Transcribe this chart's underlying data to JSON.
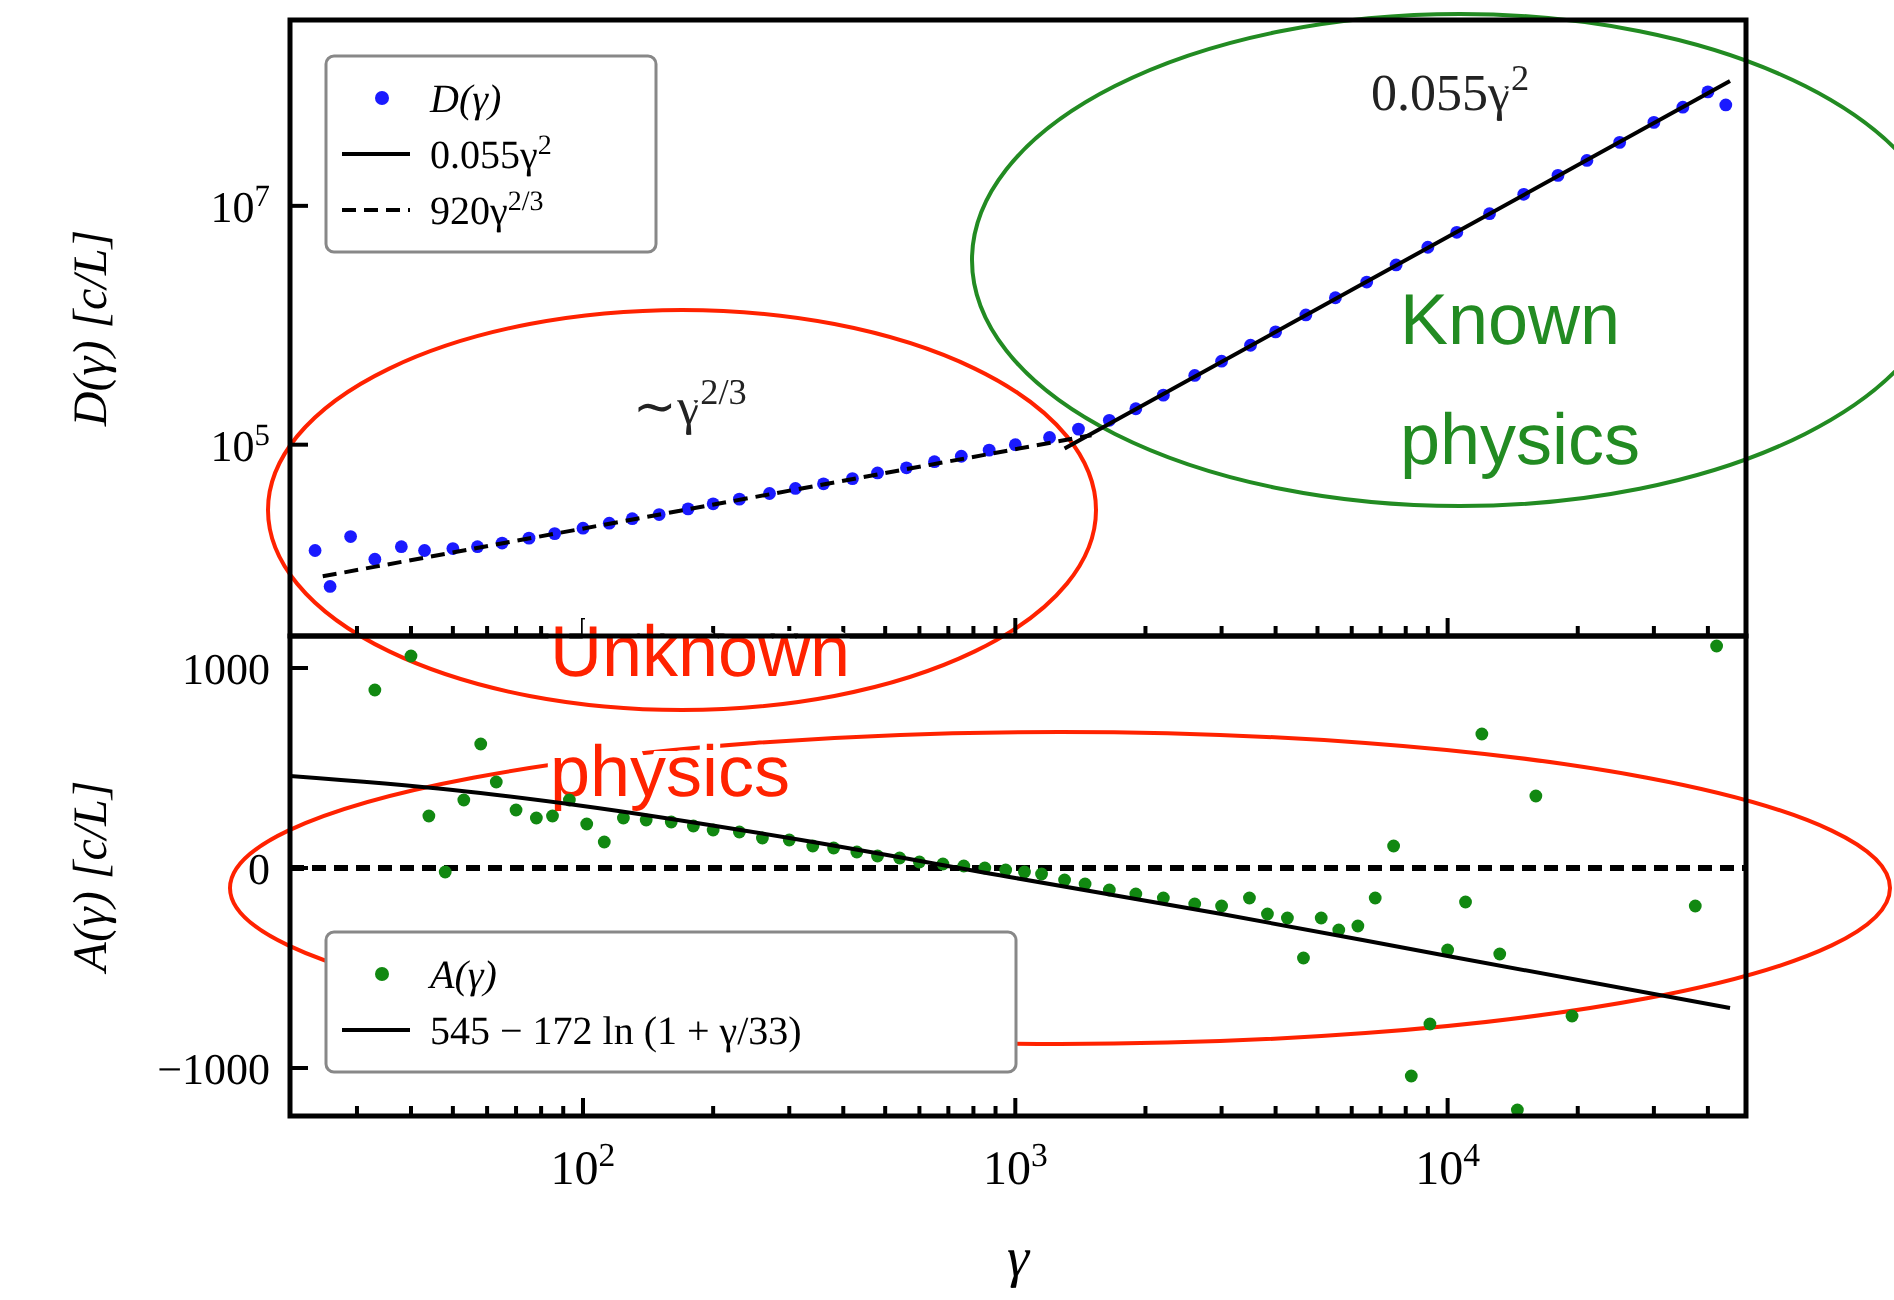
{
  "chart_data": [
    {
      "type": "scatter",
      "ylabel": "D(γ) [c/L]",
      "log": "xy",
      "xlim": [
        21,
        49000
      ],
      "ylim": [
        2500,
        360000000
      ],
      "xticks": [
        {
          "value": 30,
          "label": null
        },
        {
          "value": 40,
          "label": null
        },
        {
          "value": 50,
          "label": null
        },
        {
          "value": 60,
          "label": null
        },
        {
          "value": 70,
          "label": null
        },
        {
          "value": 80,
          "label": null
        },
        {
          "value": 90,
          "label": null
        },
        {
          "value": 100,
          "label": null
        },
        {
          "value": 200,
          "label": null
        },
        {
          "value": 300,
          "label": null
        },
        {
          "value": 400,
          "label": null
        },
        {
          "value": 500,
          "label": null
        },
        {
          "value": 600,
          "label": null
        },
        {
          "value": 700,
          "label": null
        },
        {
          "value": 800,
          "label": null
        },
        {
          "value": 900,
          "label": null
        },
        {
          "value": 1000,
          "label": null
        },
        {
          "value": 2000,
          "label": null
        },
        {
          "value": 3000,
          "label": null
        },
        {
          "value": 4000,
          "label": null
        },
        {
          "value": 5000,
          "label": null
        },
        {
          "value": 6000,
          "label": null
        },
        {
          "value": 7000,
          "label": null
        },
        {
          "value": 8000,
          "label": null
        },
        {
          "value": 9000,
          "label": null
        },
        {
          "value": 10000,
          "label": null
        },
        {
          "value": 20000,
          "label": null
        },
        {
          "value": 30000,
          "label": null
        },
        {
          "value": 40000,
          "label": null
        }
      ],
      "yticks": [
        {
          "value": 100000,
          "label": "10$^{5}$"
        },
        {
          "value": 10000000,
          "label": "10$^{7}$"
        }
      ],
      "tick_labels": "y",
      "legend": "top left",
      "grid": false,
      "series": [
        {
          "name": "D(γ)",
          "marker": "circle",
          "color": "#1a1aff",
          "x": [
            24,
            26,
            29,
            33,
            38,
            43,
            50,
            57,
            65,
            75,
            86,
            100,
            115,
            130,
            150,
            175,
            200,
            230,
            270,
            310,
            360,
            420,
            480,
            560,
            650,
            750,
            870,
            1000,
            1200,
            1400,
            1650,
            1900,
            2200,
            2600,
            3000,
            3500,
            4000,
            4700,
            5500,
            6500,
            7600,
            9000,
            10500,
            12500,
            15000,
            18000,
            21000,
            25000,
            30000,
            35000,
            40000,
            44000
          ],
          "values": [
            13000,
            6500,
            17000,
            11000,
            14000,
            13000,
            13500,
            14000,
            15000,
            16500,
            18000,
            20000,
            22000,
            24000,
            26000,
            29000,
            32000,
            35000,
            39000,
            43000,
            47000,
            52000,
            58000,
            64000,
            72000,
            80000,
            90000,
            100000,
            115000,
            135000,
            160000,
            200000,
            260000,
            380000,
            500000,
            680000,
            880000,
            1220000,
            1700000,
            2300000,
            3200000,
            4500000,
            6000000,
            8600000,
            12500000,
            18000000,
            24000000,
            34000000,
            50000000,
            67000000,
            90000000,
            70000000
          ]
        },
        {
          "name": "0.055γ$^{2}$",
          "type": "line",
          "line_style": "solid",
          "color": "#000000",
          "x": [
            1300,
            45000
          ],
          "values": [
            93000,
            111000000
          ]
        },
        {
          "name": "920γ$^{2/3}$",
          "type": "line",
          "line_style": "dashed",
          "color": "#000000",
          "x": [
            25,
            1500
          ],
          "values": [
            7900,
            120000
          ]
        }
      ],
      "annotations": [
        "∼γ$^{2/3}$",
        "0.055γ$^{2}$",
        "Unknown physics",
        "Known physics"
      ]
    },
    {
      "type": "scatter",
      "ylabel": "A(γ) [c/L]",
      "xlabel": "γ",
      "log": "x",
      "xlim": [
        21,
        49000
      ],
      "ylim": [
        -1240,
        1160
      ],
      "xticks": [
        {
          "value": 30,
          "label": null
        },
        {
          "value": 40,
          "label": null
        },
        {
          "value": 50,
          "label": null
        },
        {
          "value": 60,
          "label": null
        },
        {
          "value": 70,
          "label": null
        },
        {
          "value": 80,
          "label": null
        },
        {
          "value": 90,
          "label": null
        },
        {
          "value": 100,
          "label": "10$^{2}$"
        },
        {
          "value": 200,
          "label": null
        },
        {
          "value": 300,
          "label": null
        },
        {
          "value": 400,
          "label": null
        },
        {
          "value": 500,
          "label": null
        },
        {
          "value": 600,
          "label": null
        },
        {
          "value": 700,
          "label": null
        },
        {
          "value": 800,
          "label": null
        },
        {
          "value": 900,
          "label": null
        },
        {
          "value": 1000,
          "label": "10$^{3}$"
        },
        {
          "value": 2000,
          "label": null
        },
        {
          "value": 3000,
          "label": null
        },
        {
          "value": 4000,
          "label": null
        },
        {
          "value": 5000,
          "label": null
        },
        {
          "value": 6000,
          "label": null
        },
        {
          "value": 7000,
          "label": null
        },
        {
          "value": 8000,
          "label": null
        },
        {
          "value": 9000,
          "label": null
        },
        {
          "value": 10000,
          "label": "10$^{4}$"
        },
        {
          "value": 20000,
          "label": null
        },
        {
          "value": 30000,
          "label": null
        },
        {
          "value": 40000,
          "label": null
        }
      ],
      "yticks": [
        {
          "value": -1000,
          "label": "−1000"
        },
        0,
        1000
      ],
      "legend": "bottom left",
      "grid": false,
      "ref_lines": [
        {
          "axis": "y",
          "value": 0,
          "color": "#000000",
          "line_style": "dashed"
        }
      ],
      "series": [
        {
          "name": "A(γ)",
          "marker": "circle",
          "color": "#118811",
          "x": [
            33,
            40,
            44,
            48,
            53,
            58,
            63,
            70,
            78,
            85,
            93,
            102,
            112,
            124,
            140,
            160,
            180,
            200,
            230,
            260,
            300,
            340,
            380,
            430,
            480,
            540,
            600,
            680,
            760,
            850,
            950,
            1050,
            1150,
            1300,
            1450,
            1650,
            1900,
            2200,
            2600,
            3000,
            3480,
            3830,
            4260,
            4640,
            5100,
            5600,
            6200,
            6800,
            7500,
            8240,
            9100,
            10000,
            11000,
            12000,
            13200,
            14500,
            16000,
            19400,
            37400,
            41900
          ],
          "values": [
            890,
            1060,
            260,
            -20,
            340,
            620,
            430,
            290,
            250,
            260,
            340,
            220,
            130,
            250,
            240,
            230,
            210,
            190,
            180,
            150,
            140,
            110,
            100,
            80,
            60,
            50,
            30,
            20,
            10,
            0,
            -10,
            -20,
            -30,
            -60,
            -80,
            -110,
            -130,
            -150,
            -180,
            -190,
            -150,
            -230,
            -250,
            -450,
            -250,
            -310,
            -290,
            -150,
            110,
            -1040,
            -780,
            -410,
            -170,
            670,
            -430,
            -1210,
            360,
            -740,
            -190,
            1110
          ]
        },
        {
          "name": "545 − 172 ln (1 + γ/33)",
          "type": "line",
          "line_style": "solid",
          "color": "#000000",
          "x": [
            21,
            50,
            100,
            300,
            1000,
            3000,
            10000,
            45000
          ],
          "values": [
            460,
            390,
            310,
            150,
            -50,
            -230,
            -440,
            -700
          ]
        }
      ]
    }
  ]
}
